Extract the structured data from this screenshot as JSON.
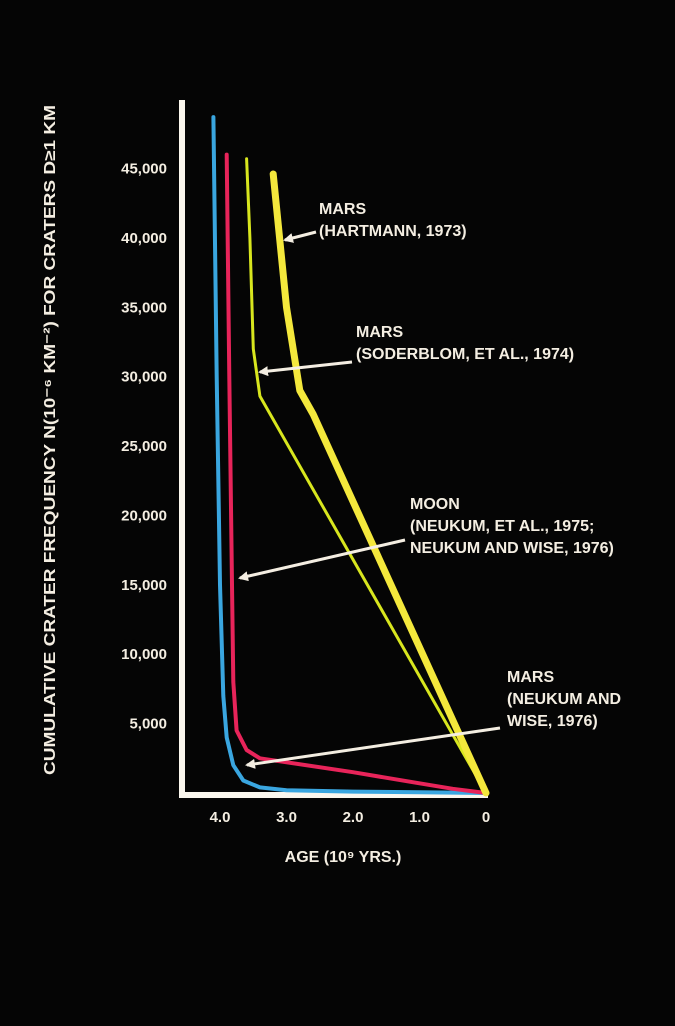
{
  "chart_data": {
    "type": "line",
    "ylabel": "CUMULATIVE CRATER FREQUENCY N(10⁻⁶ KM⁻²) FOR CRATERS D≥1 KM",
    "xlabel": "AGE (10⁹ YRS.)",
    "x_ticks": [
      "4.0",
      "3.0",
      "2.0",
      "1.0",
      "0"
    ],
    "y_ticks": [
      "5,000",
      "10,000",
      "15,000",
      "20,000",
      "25,000",
      "30,000",
      "35,000",
      "40,000",
      "45,000"
    ],
    "xlim": [
      4.5,
      0
    ],
    "ylim": [
      0,
      50000
    ],
    "grid": false,
    "series": [
      {
        "name": "MARS (NEUKUM AND WISE, 1976)",
        "color": "#3aa6e0",
        "points": [
          [
            4.1,
            48700
          ],
          [
            4.05,
            30000
          ],
          [
            4.0,
            15000
          ],
          [
            3.95,
            7000
          ],
          [
            3.9,
            4000
          ],
          [
            3.8,
            2000
          ],
          [
            3.65,
            900
          ],
          [
            3.4,
            400
          ],
          [
            3.0,
            200
          ],
          [
            2.0,
            100
          ],
          [
            1.0,
            50
          ],
          [
            0,
            0
          ]
        ]
      },
      {
        "name": "MOON (NEUKUM, ET AL., 1975; NEUKUM AND WISE, 1976)",
        "color": "#e8245a",
        "points": [
          [
            3.9,
            46000
          ],
          [
            3.86,
            30000
          ],
          [
            3.82,
            15000
          ],
          [
            3.8,
            8000
          ],
          [
            3.75,
            4500
          ],
          [
            3.6,
            3100
          ],
          [
            3.4,
            2500
          ],
          [
            2.0,
            1500
          ],
          [
            1.0,
            700
          ],
          [
            0.5,
            300
          ],
          [
            0,
            0
          ]
        ]
      },
      {
        "name": "MARS (SODERBLOM, ET AL., 1974)",
        "color": "#d8e61e",
        "points": [
          [
            3.6,
            45700
          ],
          [
            3.55,
            40000
          ],
          [
            3.5,
            32000
          ],
          [
            3.4,
            28600
          ],
          [
            0,
            0
          ]
        ]
      },
      {
        "name": "MARS (HARTMANN, 1973)",
        "color": "#f4e83c",
        "points": [
          [
            3.2,
            44600
          ],
          [
            3.0,
            35000
          ],
          [
            2.8,
            29000
          ],
          [
            2.6,
            27300
          ],
          [
            0,
            0
          ]
        ]
      }
    ],
    "annotations": [
      {
        "lines": [
          "MARS",
          "(HARTMANN, 1973)"
        ]
      },
      {
        "lines": [
          "MARS",
          "(SODERBLOM, ET AL., 1974)"
        ]
      },
      {
        "lines": [
          "MOON",
          "(NEUKUM, ET AL., 1975;",
          "NEUKUM AND WISE, 1976)"
        ]
      },
      {
        "lines": [
          "MARS",
          "(NEUKUM AND",
          "WISE, 1976)"
        ]
      }
    ],
    "colors": {
      "background": "#050505",
      "axis": "#fbf7ee",
      "text": "#f4eee2"
    }
  }
}
